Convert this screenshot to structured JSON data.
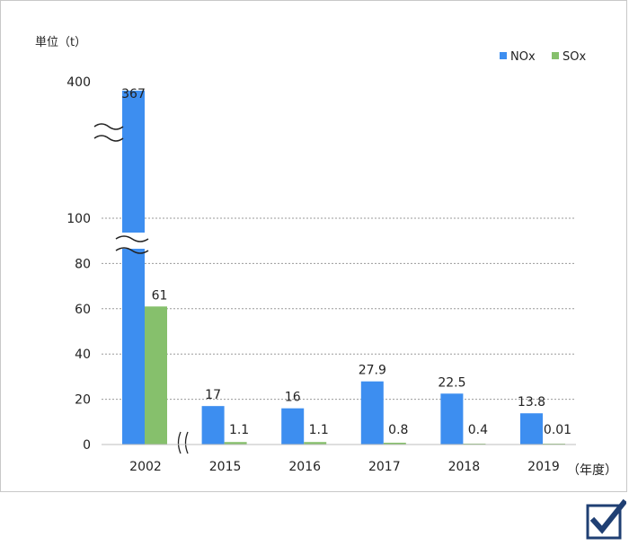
{
  "chart_data": {
    "type": "bar",
    "unit_label": "単位（t）",
    "x_suffix_label": "（年度）",
    "categories": [
      "2002",
      "2015",
      "2016",
      "2017",
      "2018",
      "2019"
    ],
    "series": [
      {
        "name": "NOx",
        "color": "#3d8ef0",
        "values": [
          367,
          17,
          16,
          27.9,
          22.5,
          13.8
        ],
        "labels": [
          "367",
          "17",
          "16",
          "27.9",
          "22.5",
          "13.8"
        ]
      },
      {
        "name": "SOx",
        "color": "#86c06c",
        "values": [
          61,
          1.1,
          1.1,
          0.8,
          0.4,
          0.01
        ],
        "labels": [
          "61",
          "1.1",
          "1.1",
          "0.8",
          "0.4",
          "0.01"
        ]
      }
    ],
    "y_ticks": [
      "0",
      "20",
      "40",
      "60",
      "80",
      "100",
      "400"
    ],
    "ylim": [
      0,
      400
    ],
    "axis_break": true,
    "grid": true,
    "legend_position": "top-right"
  },
  "badge": {
    "icon": "checkbox-check-icon",
    "color": "#1f3f73"
  }
}
